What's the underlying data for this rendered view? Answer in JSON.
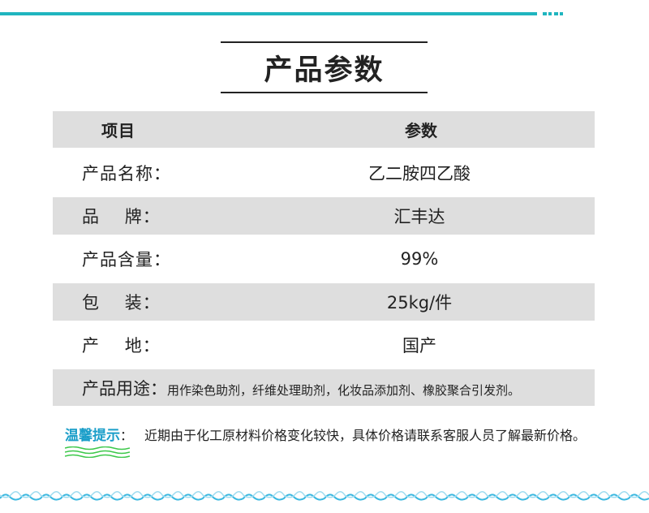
{
  "title": "产品参数",
  "table": {
    "header": {
      "label": "项目",
      "value": "参数"
    },
    "rows": [
      {
        "label": "产品名称：",
        "value": "乙二胺四乙酸"
      },
      {
        "label": "品    牌：",
        "value": "汇丰达"
      },
      {
        "label": "产品含量：",
        "value": "99%"
      },
      {
        "label": "包    装：",
        "value": "25kg/件"
      },
      {
        "label": "产    地：",
        "value": "国产"
      }
    ],
    "usage": {
      "label": "产品用途：",
      "value": "用作染色助剂，纤维处理助剂，化妆品添加剂、橡胶聚合引发剂。"
    }
  },
  "tip": {
    "title": "温馨提示",
    "colon": "：",
    "text": "近期由于化工原材料价格变化较快，具体价格请联系客服人员了解最新价格。"
  },
  "colors": {
    "accent": "#1fb5bf",
    "tip": "#1a9ec9",
    "wave": "#3cc84a",
    "rowGray": "#dedede"
  }
}
